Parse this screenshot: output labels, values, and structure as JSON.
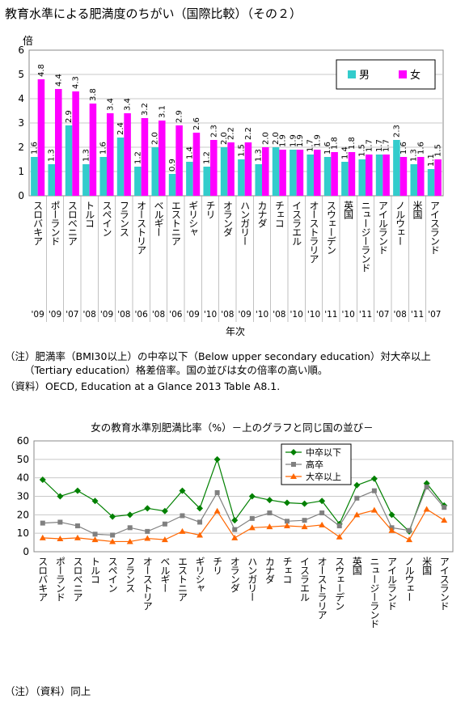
{
  "title": "教育水準による肥満度のちがい（国際比較）（その２）",
  "chart_data": [
    {
      "type": "bar",
      "ylabel": "倍",
      "xlabel": "年次",
      "ylim": [
        0,
        6
      ],
      "yticks": [
        0,
        1,
        2,
        3,
        4,
        5,
        6
      ],
      "legend_position": "top-right",
      "categories": [
        "スロバキア",
        "ポーランド",
        "スロベニア",
        "トルコ",
        "スペイン",
        "フランス",
        "オーストリア",
        "ベルギー",
        "エストニア",
        "ギリシャ",
        "チリ",
        "オランダ",
        "ハンガリー",
        "カナダ",
        "チェコ",
        "イスラエル",
        "オーストラリア",
        "スウェーデン",
        "英国",
        "ニュージーランド",
        "アイルランド",
        "ノルウェー",
        "米国",
        "アイスランド"
      ],
      "years": [
        "'09",
        "'09",
        "'07",
        "'08",
        "'09",
        "'08",
        "'06",
        "'08",
        "'06",
        "'09",
        "'10",
        "'08",
        "'09",
        "'10",
        "'08",
        "'10",
        "'10",
        "'11",
        "'10",
        "'11",
        "'07",
        "'08",
        "'11",
        "'07"
      ],
      "series": [
        {
          "name": "男",
          "color": "#33cccc",
          "values": [
            1.6,
            1.3,
            2.9,
            1.3,
            1.6,
            2.4,
            1.2,
            2.0,
            0.9,
            1.4,
            1.2,
            2.0,
            1.5,
            1.3,
            2.0,
            1.9,
            1.7,
            1.6,
            1.4,
            1.5,
            1.7,
            2.3,
            1.3,
            1.1
          ]
        },
        {
          "name": "女",
          "color": "#ff00ff",
          "values": [
            4.8,
            4.4,
            4.3,
            3.8,
            3.4,
            3.4,
            3.2,
            3.1,
            2.9,
            2.6,
            2.3,
            2.2,
            2.2,
            2.0,
            1.9,
            1.9,
            1.9,
            1.8,
            1.8,
            1.7,
            1.7,
            1.6,
            1.6,
            1.5
          ]
        }
      ]
    },
    {
      "type": "line",
      "title": "女の教育水準別肥満比率（%）－上のグラフと同じ国の並び－",
      "ylim": [
        0,
        60
      ],
      "yticks": [
        0,
        10,
        20,
        30,
        40,
        50,
        60
      ],
      "legend_position": "top-right",
      "categories": [
        "スロバキア",
        "ポーランド",
        "スロベニア",
        "トルコ",
        "スペイン",
        "フランス",
        "オーストリア",
        "ベルギー",
        "エストニア",
        "ギリシャ",
        "チリ",
        "オランダ",
        "ハンガリー",
        "カナダ",
        "チェコ",
        "イスラエル",
        "オーストラリア",
        "スウェーデン",
        "英国",
        "ニュージーランド",
        "アイルランド",
        "ノルウェー",
        "米国",
        "アイスランド"
      ],
      "series": [
        {
          "name": "中卒以下",
          "color": "#008000",
          "marker": "diamond",
          "values": [
            39,
            30,
            33,
            27.5,
            19,
            20,
            23.5,
            22,
            33,
            23.5,
            50,
            17,
            30,
            28,
            26.5,
            26,
            27.5,
            15,
            36,
            39.5,
            20,
            11,
            37,
            25
          ]
        },
        {
          "name": "高卒",
          "color": "#808080",
          "marker": "square",
          "values": [
            15.5,
            16,
            14,
            9.5,
            9,
            13,
            11,
            15,
            19.5,
            16,
            32,
            12,
            18,
            21,
            16.5,
            17,
            21,
            14,
            29,
            33,
            13,
            11.5,
            35,
            24
          ]
        },
        {
          "name": "大卒以上",
          "color": "#ff6600",
          "marker": "triangle",
          "values": [
            7.5,
            7,
            7.5,
            6.5,
            5.5,
            5.5,
            7.2,
            6.5,
            11,
            9,
            22,
            7.5,
            13,
            13.5,
            14,
            13.5,
            14.5,
            8,
            20,
            22.5,
            11.5,
            6.5,
            23,
            17
          ]
        }
      ]
    }
  ],
  "notes": {
    "note1_line1": "（注）肥満率（BMI30以上）の中卒以下（Below upper secondary education）対大卒以上",
    "note1_line2": "（Tertiary education）格差倍率。国の並びは女の倍率の高い順。",
    "source": "（資料）OECD, Education at a Glance 2013 Table A8.1.",
    "note2": "（注）（資料）同上"
  }
}
